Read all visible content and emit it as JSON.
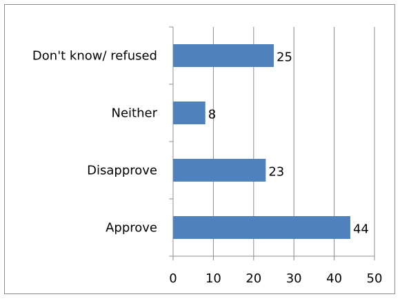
{
  "chart_data": {
    "type": "bar",
    "orientation": "horizontal",
    "categories": [
      "Don't know/ refused",
      "Neither",
      "Disapprove",
      "Approve"
    ],
    "values": [
      25,
      8,
      23,
      44
    ],
    "xlim": [
      0,
      50
    ],
    "xticks": [
      0,
      10,
      20,
      30,
      40,
      50
    ],
    "grid": true,
    "bar_color": "#4f81bd",
    "data_labels": true
  }
}
